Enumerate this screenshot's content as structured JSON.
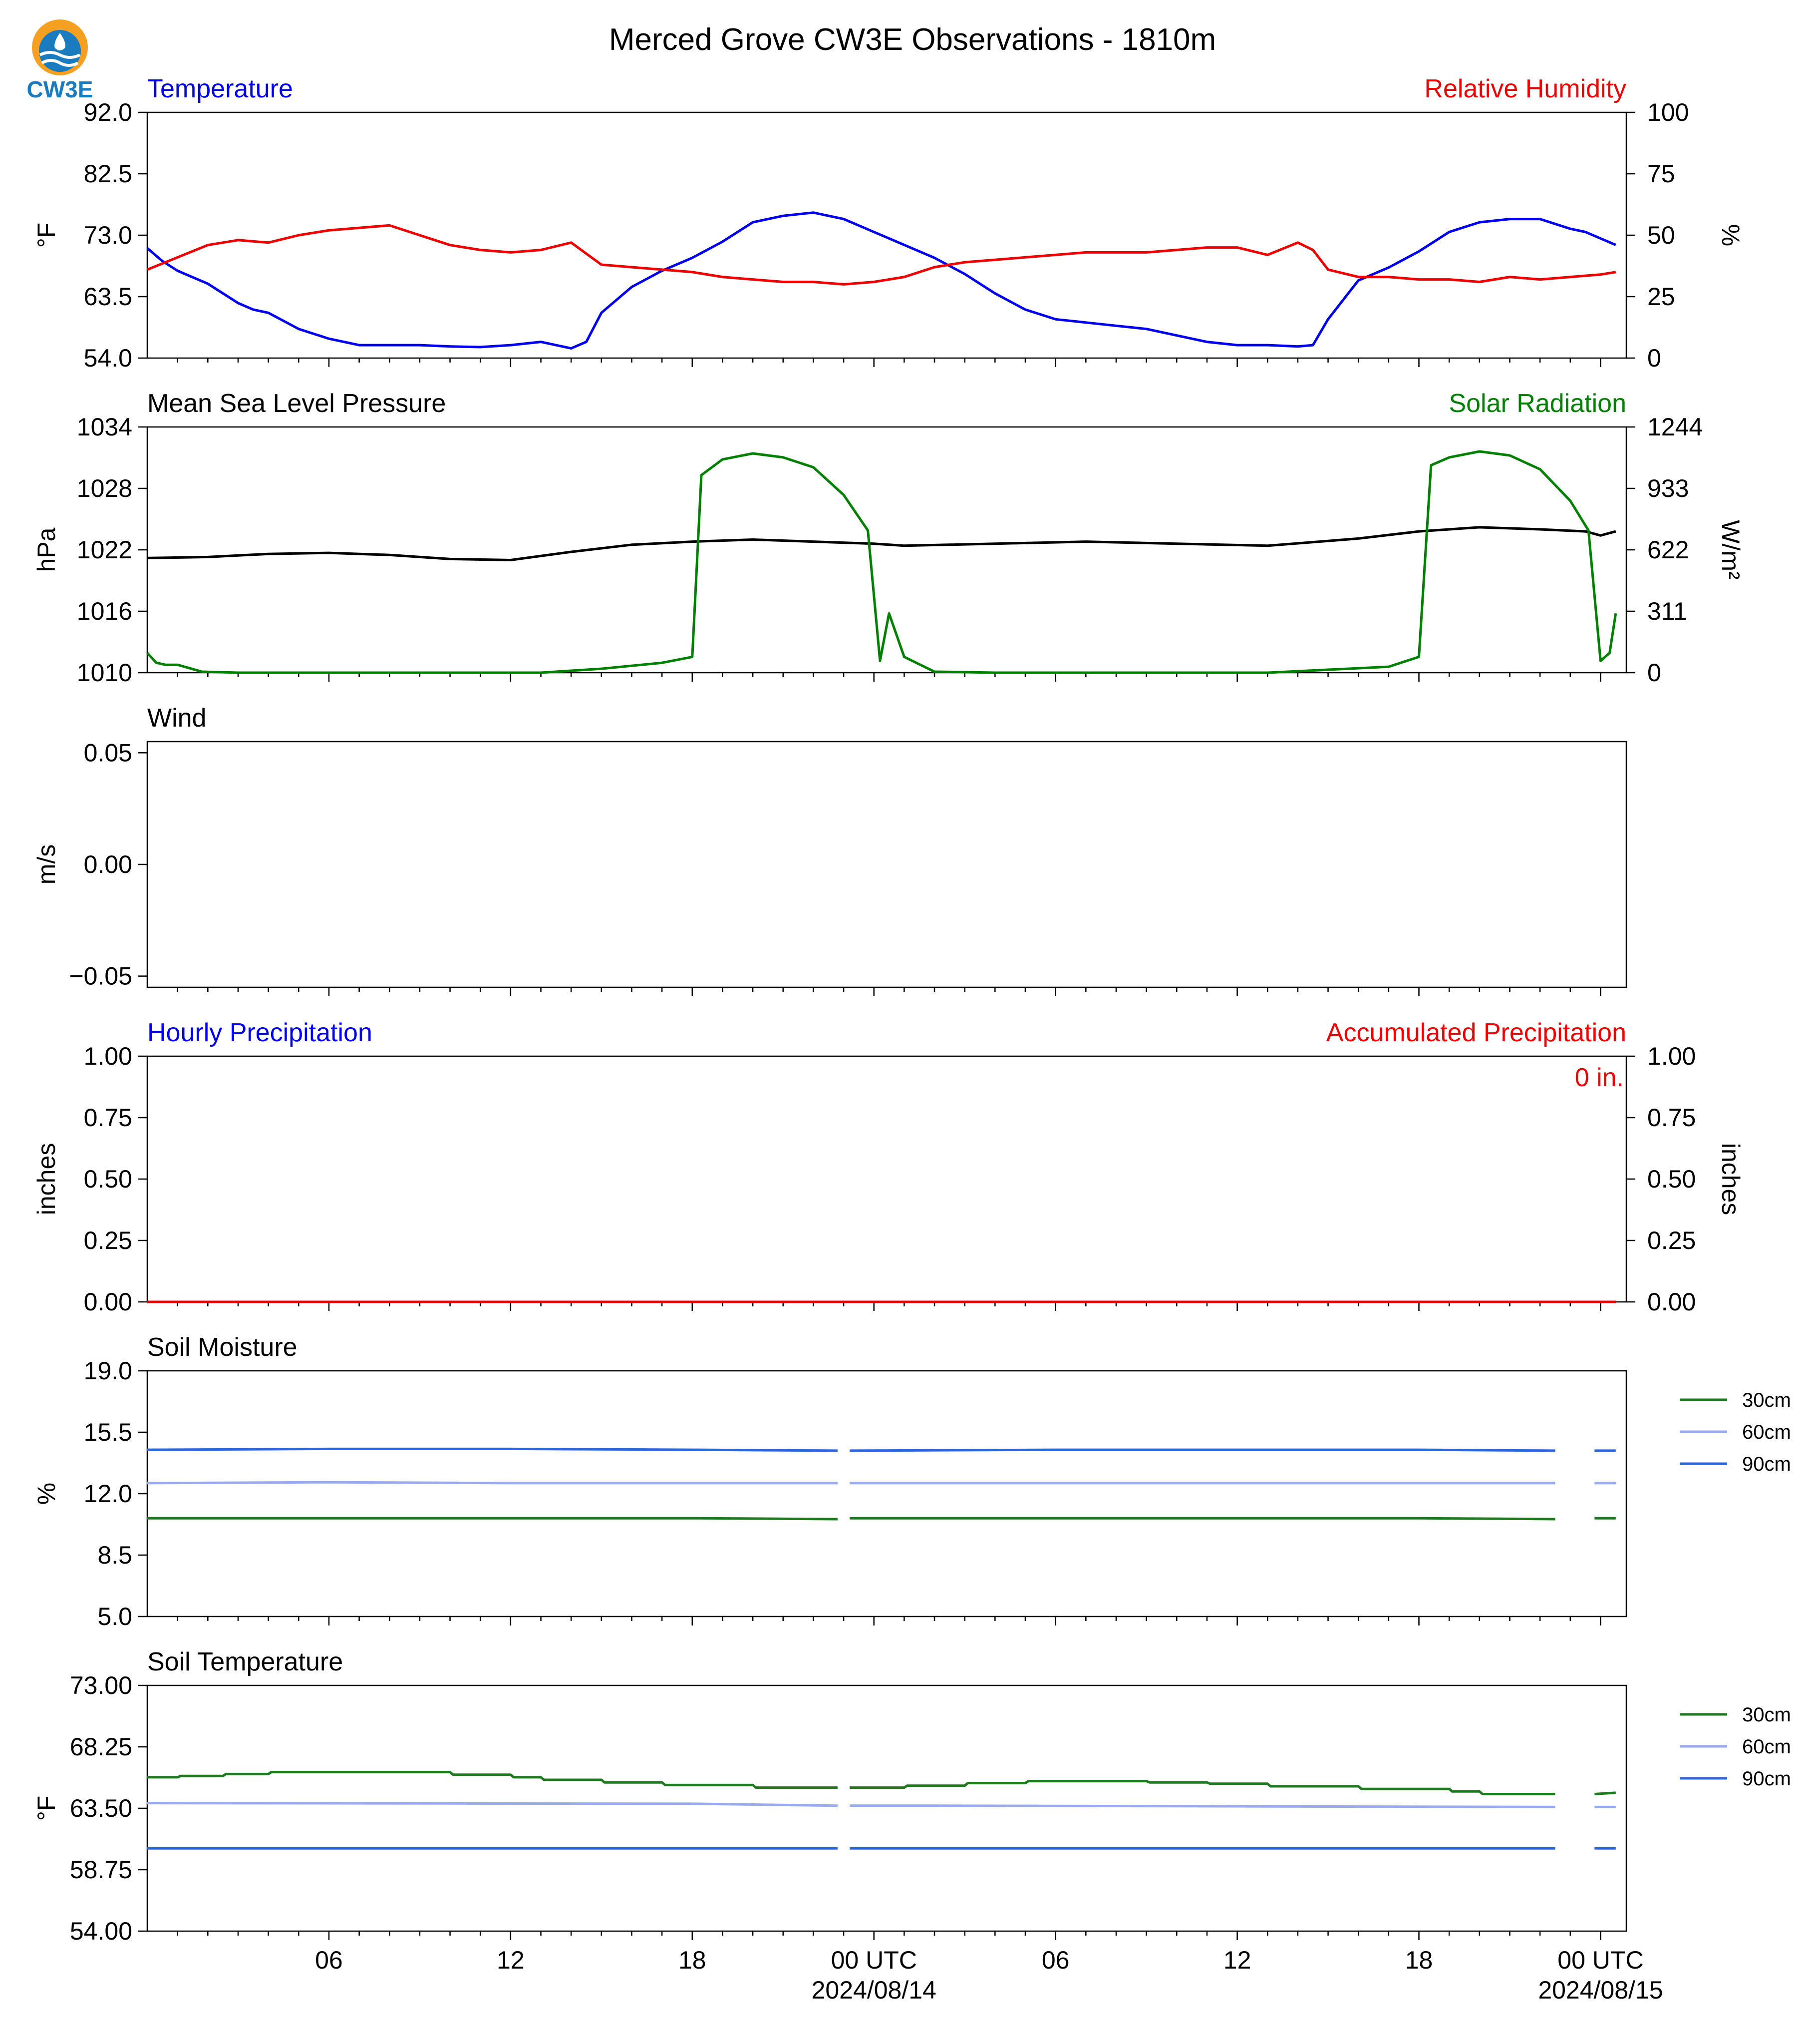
{
  "figure": {
    "title": "Merced Grove CW3E Observations - 1810m",
    "logo_text": "CW3E"
  },
  "time_axis": {
    "start_hour": 0,
    "end_hour": 48,
    "ticks": [
      {
        "hour": 6,
        "label": "06",
        "sub": ""
      },
      {
        "hour": 12,
        "label": "12",
        "sub": ""
      },
      {
        "hour": 18,
        "label": "18",
        "sub": ""
      },
      {
        "hour": 24,
        "label": "00 UTC",
        "sub": "2024/08/14"
      },
      {
        "hour": 30,
        "label": "06",
        "sub": ""
      },
      {
        "hour": 36,
        "label": "12",
        "sub": ""
      },
      {
        "hour": 42,
        "label": "18",
        "sub": ""
      },
      {
        "hour": 48,
        "label": "00 UTC",
        "sub": "2024/08/15"
      }
    ]
  },
  "chart_data": [
    {
      "id": "temp_rh",
      "type": "line",
      "title_left": "Temperature",
      "title_right": "Relative Humidity",
      "ylabel_left": "°F",
      "ylabel_right": "%",
      "ylim_left": [
        54.0,
        92.0
      ],
      "ylim_right": [
        0,
        100
      ],
      "yticks_left": [
        "54.0",
        "63.5",
        "73.0",
        "82.5",
        "92.0"
      ],
      "yticks_right": [
        "0",
        "25",
        "50",
        "75",
        "100"
      ],
      "series": [
        {
          "name": "Temperature",
          "axis": "left",
          "color": "#0000ee",
          "x": [
            0,
            0.5,
            1,
            1.5,
            2,
            2.5,
            3,
            3.5,
            4,
            5,
            6,
            7,
            8,
            9,
            10,
            11,
            12,
            13,
            14,
            14.5,
            15,
            16,
            17,
            18,
            19,
            20,
            21,
            22,
            23,
            24,
            25,
            26,
            27,
            28,
            29,
            30,
            31,
            32,
            33,
            34,
            35,
            36,
            37,
            38,
            38.5,
            39,
            40,
            41,
            42,
            43,
            44,
            45,
            46,
            47,
            47.5,
            48,
            48.5
          ],
          "y": [
            71.0,
            69.0,
            67.5,
            66.5,
            65.5,
            64.0,
            62.5,
            61.5,
            61.0,
            58.5,
            57.0,
            56.0,
            56.0,
            56.0,
            55.8,
            55.7,
            56.0,
            56.5,
            55.5,
            56.5,
            61.0,
            65.0,
            67.5,
            69.5,
            72.0,
            75.0,
            76.0,
            76.5,
            75.5,
            73.5,
            71.5,
            69.5,
            67.0,
            64.0,
            61.5,
            60.0,
            59.5,
            59.0,
            58.5,
            57.5,
            56.5,
            56.0,
            56.0,
            55.8,
            56.0,
            60.0,
            66.0,
            68.0,
            70.5,
            73.5,
            75.0,
            75.5,
            75.5,
            74.0,
            73.5,
            72.5,
            71.5
          ]
        },
        {
          "name": "Relative Humidity",
          "axis": "right",
          "color": "#ee0000",
          "x": [
            0,
            1,
            2,
            3,
            4,
            5,
            6,
            7,
            8,
            9,
            10,
            11,
            12,
            13,
            14,
            15,
            16,
            17,
            18,
            19,
            20,
            21,
            22,
            23,
            24,
            25,
            26,
            27,
            28,
            29,
            30,
            31,
            32,
            33,
            34,
            35,
            36,
            37,
            38,
            38.5,
            39,
            40,
            41,
            42,
            43,
            44,
            45,
            46,
            47,
            48,
            48.5
          ],
          "y": [
            36,
            41,
            46,
            48,
            47,
            50,
            52,
            53,
            54,
            50,
            46,
            44,
            43,
            44,
            47,
            38,
            37,
            36,
            35,
            33,
            32,
            31,
            31,
            30,
            31,
            33,
            37,
            39,
            40,
            41,
            42,
            43,
            43,
            43,
            44,
            45,
            45,
            42,
            47,
            44,
            36,
            33,
            33,
            32,
            32,
            31,
            33,
            32,
            33,
            34,
            35
          ]
        }
      ]
    },
    {
      "id": "pressure_solar",
      "type": "line",
      "title_left": "Mean Sea Level Pressure",
      "title_right": "Solar Radiation",
      "ylabel_left": "hPa",
      "ylabel_right": "W/m²",
      "ylim_left": [
        1010,
        1034
      ],
      "ylim_right": [
        0,
        1244
      ],
      "yticks_left": [
        "1010",
        "1016",
        "1022",
        "1028",
        "1034"
      ],
      "yticks_right": [
        "0",
        "311",
        "622",
        "933",
        "1244"
      ],
      "series": [
        {
          "name": "Mean Sea Level Pressure",
          "axis": "left",
          "color": "#000000",
          "x": [
            0,
            2,
            4,
            6,
            8,
            10,
            12,
            14,
            16,
            18,
            20,
            22,
            24,
            25,
            28,
            31,
            34,
            37,
            40,
            42,
            44,
            46,
            47.5,
            48,
            48.5
          ],
          "y": [
            1021.2,
            1021.3,
            1021.6,
            1021.7,
            1021.5,
            1021.1,
            1021.0,
            1021.8,
            1022.5,
            1022.8,
            1023.0,
            1022.8,
            1022.6,
            1022.4,
            1022.6,
            1022.8,
            1022.6,
            1022.4,
            1023.1,
            1023.8,
            1024.2,
            1024.0,
            1023.8,
            1023.4,
            1023.8
          ]
        },
        {
          "name": "Solar Radiation",
          "axis": "right",
          "color": "#008000",
          "x": [
            0,
            0.3,
            0.6,
            1,
            1.8,
            3,
            10,
            13,
            15,
            17,
            18,
            18.3,
            19,
            20,
            21,
            22,
            23,
            23.8,
            24.2,
            24.5,
            25,
            26,
            28,
            30,
            37,
            41,
            42,
            42.4,
            43,
            44,
            45,
            46,
            47,
            47.6,
            48,
            48.3,
            48.5
          ],
          "y": [
            100,
            50,
            40,
            40,
            5,
            0,
            0,
            0,
            20,
            50,
            80,
            1000,
            1080,
            1110,
            1090,
            1040,
            900,
            720,
            60,
            300,
            80,
            5,
            0,
            0,
            0,
            30,
            80,
            1050,
            1090,
            1120,
            1100,
            1030,
            870,
            720,
            60,
            100,
            300
          ]
        }
      ]
    },
    {
      "id": "wind",
      "type": "line",
      "title_left": "Wind",
      "ylabel_left": "m/s",
      "ylim_left": [
        -0.055,
        0.055
      ],
      "yticks_left": [
        "−0.05",
        "0.00",
        "0.05"
      ],
      "series": []
    },
    {
      "id": "precip",
      "type": "line",
      "title_left": "Hourly Precipitation",
      "title_right": "Accumulated Precipitation",
      "annotation": "0 in.",
      "ylabel_left": "inches",
      "ylabel_right": "inches",
      "ylim_left": [
        0,
        1
      ],
      "ylim_right": [
        0,
        1
      ],
      "yticks_left": [
        "0.00",
        "0.25",
        "0.50",
        "0.75",
        "1.00"
      ],
      "yticks_right": [
        "0.00",
        "0.25",
        "0.50",
        "0.75",
        "1.00"
      ],
      "series": [
        {
          "name": "Hourly Precipitation",
          "axis": "left",
          "color": "#0000ee",
          "x": [
            0,
            48.5
          ],
          "y": [
            0,
            0
          ]
        },
        {
          "name": "Accumulated Precipitation",
          "axis": "right",
          "color": "#ee0000",
          "x": [
            0,
            48.5
          ],
          "y": [
            0,
            0
          ]
        }
      ]
    },
    {
      "id": "soil_moisture",
      "type": "line",
      "title_left": "Soil Moisture",
      "ylabel_left": "%",
      "ylim_left": [
        5.0,
        19.0
      ],
      "yticks_left": [
        "5.0",
        "8.5",
        "12.0",
        "15.5",
        "19.0"
      ],
      "series": [
        {
          "name": "30cm",
          "axis": "left",
          "color": "#1f7a1f",
          "segments": [
            {
              "x": [
                0,
                6,
                12,
                18,
                22.8
              ],
              "y": [
                10.6,
                10.6,
                10.6,
                10.6,
                10.55
              ]
            },
            {
              "x": [
                23.2,
                30,
                36,
                42,
                46.5
              ],
              "y": [
                10.6,
                10.6,
                10.6,
                10.6,
                10.55
              ]
            },
            {
              "x": [
                47.8,
                48.5
              ],
              "y": [
                10.6,
                10.6
              ]
            }
          ]
        },
        {
          "name": "60cm",
          "axis": "left",
          "color": "#99aaee",
          "segments": [
            {
              "x": [
                0,
                6,
                12,
                18,
                22.8
              ],
              "y": [
                12.6,
                12.65,
                12.6,
                12.6,
                12.6
              ]
            },
            {
              "x": [
                23.2,
                30,
                36,
                42,
                46.5
              ],
              "y": [
                12.6,
                12.6,
                12.6,
                12.6,
                12.6
              ]
            },
            {
              "x": [
                47.8,
                48.5
              ],
              "y": [
                12.6,
                12.6
              ]
            }
          ]
        },
        {
          "name": "90cm",
          "axis": "left",
          "color": "#2b66dd",
          "segments": [
            {
              "x": [
                0,
                6,
                12,
                18,
                22.8
              ],
              "y": [
                14.5,
                14.55,
                14.55,
                14.5,
                14.45
              ]
            },
            {
              "x": [
                23.2,
                30,
                36,
                42,
                46.5
              ],
              "y": [
                14.45,
                14.5,
                14.5,
                14.5,
                14.45
              ]
            },
            {
              "x": [
                47.8,
                48.5
              ],
              "y": [
                14.45,
                14.45
              ]
            }
          ]
        }
      ]
    },
    {
      "id": "soil_temperature",
      "type": "line",
      "title_left": "Soil Temperature",
      "ylabel_left": "°F",
      "ylim_left": [
        54.0,
        73.0
      ],
      "yticks_left": [
        "54.00",
        "58.75",
        "63.50",
        "68.25",
        "73.00"
      ],
      "series": [
        {
          "name": "30cm",
          "axis": "left",
          "color": "#1f7a1f",
          "segments": [
            {
              "x": [
                0,
                1,
                1.1,
                2.5,
                2.6,
                4,
                4.1,
                10,
                10.1,
                12,
                12.1,
                13,
                13.1,
                15,
                15.1,
                17,
                17.1,
                20,
                20.1,
                22.8
              ],
              "y": [
                65.9,
                65.9,
                66.0,
                66.0,
                66.15,
                66.15,
                66.3,
                66.3,
                66.1,
                66.1,
                65.9,
                65.9,
                65.7,
                65.7,
                65.5,
                65.5,
                65.3,
                65.3,
                65.1,
                65.1
              ]
            },
            {
              "x": [
                23.2,
                25,
                25.1,
                27,
                27.1,
                29,
                29.1,
                33,
                33.1,
                35,
                35.1,
                37,
                37.1,
                40,
                40.1,
                43,
                43.1,
                44,
                44.1,
                46.5
              ],
              "y": [
                65.1,
                65.1,
                65.25,
                65.25,
                65.45,
                65.45,
                65.6,
                65.6,
                65.5,
                65.5,
                65.4,
                65.4,
                65.2,
                65.2,
                65.0,
                65.0,
                64.8,
                64.8,
                64.6,
                64.6
              ]
            },
            {
              "x": [
                47.8,
                48.5
              ],
              "y": [
                64.6,
                64.7
              ]
            }
          ]
        },
        {
          "name": "60cm",
          "axis": "left",
          "color": "#99aaee",
          "segments": [
            {
              "x": [
                0,
                18,
                22.8
              ],
              "y": [
                63.9,
                63.85,
                63.7
              ]
            },
            {
              "x": [
                23.2,
                26,
                46.5
              ],
              "y": [
                63.7,
                63.7,
                63.6
              ]
            },
            {
              "x": [
                47.8,
                48.5
              ],
              "y": [
                63.6,
                63.6
              ]
            }
          ]
        },
        {
          "name": "90cm",
          "axis": "left",
          "color": "#2b66dd",
          "segments": [
            {
              "x": [
                0,
                22.8
              ],
              "y": [
                60.4,
                60.4
              ]
            },
            {
              "x": [
                23.2,
                46.5
              ],
              "y": [
                60.4,
                60.4
              ]
            },
            {
              "x": [
                47.8,
                48.5
              ],
              "y": [
                60.4,
                60.4
              ]
            }
          ]
        }
      ]
    }
  ]
}
